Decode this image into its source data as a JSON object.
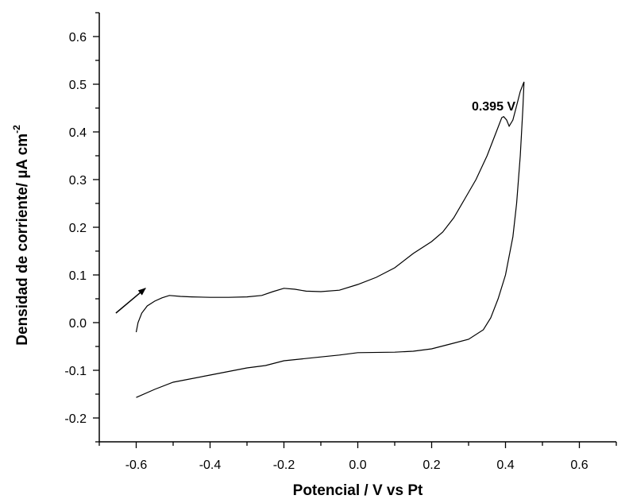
{
  "chart_data": {
    "type": "line",
    "title": "",
    "xlabel": "Potencial / V vs Pt",
    "ylabel": {
      "main": "Densidad de corriente/ ",
      "mu": "µ",
      "unit": "A cm",
      "superscript": "-2"
    },
    "xlim": [
      -0.7,
      0.7
    ],
    "ylim": [
      -0.25,
      0.65
    ],
    "x_ticks": [
      -0.6,
      -0.4,
      -0.2,
      0.0,
      0.2,
      0.4,
      0.6
    ],
    "x_tick_labels": [
      "-0.6",
      "-0.4",
      "-0.2",
      "0.0",
      "0.2",
      "0.4",
      "0.6"
    ],
    "x_minor_ticks": [
      -0.7,
      -0.5,
      -0.3,
      -0.1,
      0.1,
      0.3,
      0.5,
      0.7
    ],
    "y_ticks": [
      -0.2,
      -0.1,
      0.0,
      0.1,
      0.2,
      0.3,
      0.4,
      0.5,
      0.6
    ],
    "y_tick_labels": [
      "-0.2",
      "-0.1",
      "0.0",
      "0.1",
      "0.2",
      "0.3",
      "0.4",
      "0.5",
      "0.6"
    ],
    "y_minor_ticks": [
      -0.25,
      -0.15,
      -0.05,
      0.05,
      0.15,
      0.25,
      0.35,
      0.45,
      0.55,
      0.65
    ],
    "grid": false,
    "series": [
      {
        "color": "#000000",
        "points": [
          [
            -0.6,
            -0.02
          ],
          [
            -0.595,
            0.0
          ],
          [
            -0.585,
            0.02
          ],
          [
            -0.57,
            0.035
          ],
          [
            -0.55,
            0.045
          ],
          [
            -0.53,
            0.052
          ],
          [
            -0.51,
            0.057
          ],
          [
            -0.48,
            0.055
          ],
          [
            -0.45,
            0.054
          ],
          [
            -0.4,
            0.053
          ],
          [
            -0.35,
            0.053
          ],
          [
            -0.3,
            0.054
          ],
          [
            -0.26,
            0.057
          ],
          [
            -0.23,
            0.065
          ],
          [
            -0.2,
            0.072
          ],
          [
            -0.17,
            0.07
          ],
          [
            -0.14,
            0.066
          ],
          [
            -0.1,
            0.065
          ],
          [
            -0.05,
            0.068
          ],
          [
            0.0,
            0.08
          ],
          [
            0.05,
            0.095
          ],
          [
            0.1,
            0.115
          ],
          [
            0.15,
            0.145
          ],
          [
            0.2,
            0.17
          ],
          [
            0.23,
            0.19
          ],
          [
            0.26,
            0.22
          ],
          [
            0.29,
            0.26
          ],
          [
            0.32,
            0.3
          ],
          [
            0.35,
            0.35
          ],
          [
            0.375,
            0.4
          ],
          [
            0.39,
            0.43
          ],
          [
            0.395,
            0.432
          ],
          [
            0.403,
            0.425
          ],
          [
            0.41,
            0.412
          ],
          [
            0.42,
            0.425
          ],
          [
            0.43,
            0.455
          ],
          [
            0.44,
            0.485
          ],
          [
            0.45,
            0.505
          ],
          [
            0.447,
            0.45
          ],
          [
            0.44,
            0.35
          ],
          [
            0.43,
            0.25
          ],
          [
            0.42,
            0.18
          ],
          [
            0.4,
            0.1
          ],
          [
            0.38,
            0.05
          ],
          [
            0.36,
            0.01
          ],
          [
            0.34,
            -0.015
          ],
          [
            0.3,
            -0.035
          ],
          [
            0.25,
            -0.045
          ],
          [
            0.2,
            -0.055
          ],
          [
            0.15,
            -0.06
          ],
          [
            0.1,
            -0.062
          ],
          [
            0.0,
            -0.063
          ],
          [
            -0.05,
            -0.068
          ],
          [
            -0.1,
            -0.072
          ],
          [
            -0.2,
            -0.08
          ],
          [
            -0.25,
            -0.09
          ],
          [
            -0.3,
            -0.095
          ],
          [
            -0.4,
            -0.11
          ],
          [
            -0.5,
            -0.125
          ],
          [
            -0.55,
            -0.14
          ],
          [
            -0.6,
            -0.157
          ]
        ]
      }
    ],
    "annotations": [
      {
        "text": "0.395 V",
        "x": 0.33,
        "y": 0.455
      }
    ],
    "arrow": {
      "from": [
        -0.655,
        0.02
      ],
      "to": [
        -0.575,
        0.072
      ]
    }
  }
}
